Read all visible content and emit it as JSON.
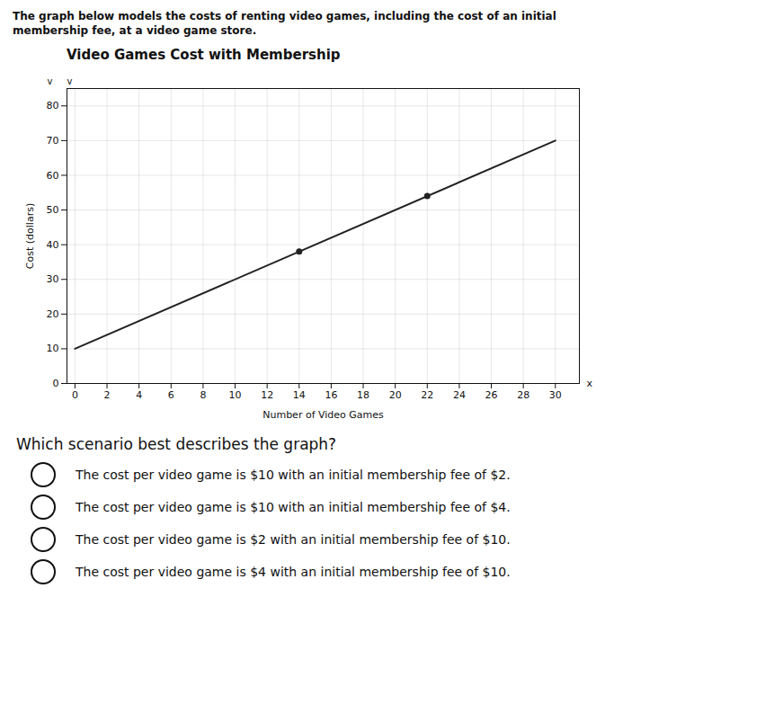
{
  "chart_data": {
    "type": "line",
    "title": "Video Games Cost with Membership",
    "subtitle": [
      "The graph below models the costs of renting video games, including the cost of an initial",
      "membership fee, at a video game store."
    ],
    "xlabel": "Number of Video Games",
    "ylabel": "Cost (dollars)",
    "xlim": [
      -0.5,
      31.5
    ],
    "ylim": [
      0,
      85
    ],
    "xticks": [
      0,
      2,
      4,
      6,
      8,
      10,
      12,
      14,
      16,
      18,
      20,
      22,
      24,
      26,
      28,
      30
    ],
    "yticks": [
      0,
      10,
      20,
      30,
      40,
      50,
      60,
      70,
      80
    ],
    "grid": true,
    "series": [
      {
        "type": "line",
        "x": [
          0,
          30
        ],
        "values": [
          10,
          70
        ],
        "color": "#222222"
      },
      {
        "type": "scatter",
        "x": [
          14,
          22
        ],
        "values": [
          38,
          54
        ],
        "color": "#222222",
        "marker": "o"
      }
    ],
    "annotations": [
      "x",
      "v",
      "v"
    ],
    "question": "Which scenario best describes the graph?",
    "options": [
      "The cost per video game is $10 with an initial membership fee of $2.",
      "The cost per video game is $10 with an initial membership fee of $4.",
      "The cost per video game is $2 with an initial membership fee of $10.",
      "The cost per video game is $4 with an initial membership fee of $10."
    ]
  }
}
